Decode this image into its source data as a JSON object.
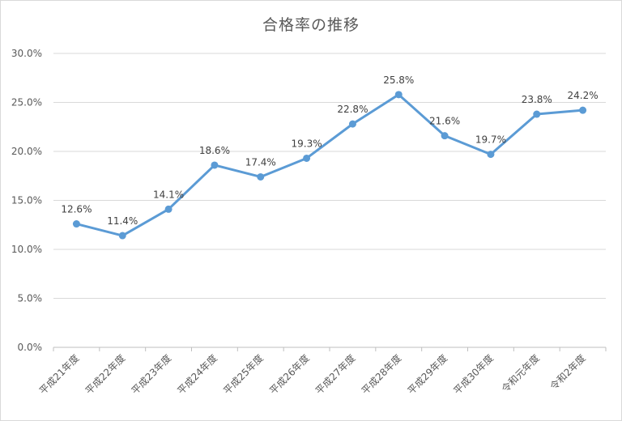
{
  "chart_data": {
    "type": "line",
    "title": "合格率の推移",
    "xlabel": "",
    "ylabel": "",
    "categories": [
      "平成21年度",
      "平成22年度",
      "平成23年度",
      "平成24年度",
      "平成25年度",
      "平成26年度",
      "平成27年度",
      "平成28年度",
      "平成29年度",
      "平成30年度",
      "令和元年度",
      "令和2年度"
    ],
    "series": [
      {
        "values": [
          12.6,
          11.4,
          14.1,
          18.6,
          17.4,
          19.3,
          22.8,
          25.8,
          21.6,
          19.7,
          23.8,
          24.2
        ],
        "labels": [
          "12.6%",
          "11.4%",
          "14.1%",
          "18.6%",
          "17.4%",
          "19.3%",
          "22.8%",
          "25.8%",
          "21.6%",
          "19.7%",
          "23.8%",
          "24.2%"
        ],
        "color": "#5b9bd5"
      }
    ],
    "ylim": [
      0,
      30
    ],
    "yticks": [
      "0.0%",
      "5.0%",
      "10.0%",
      "15.0%",
      "20.0%",
      "25.0%",
      "30.0%"
    ],
    "grid": true,
    "legend": "none"
  }
}
